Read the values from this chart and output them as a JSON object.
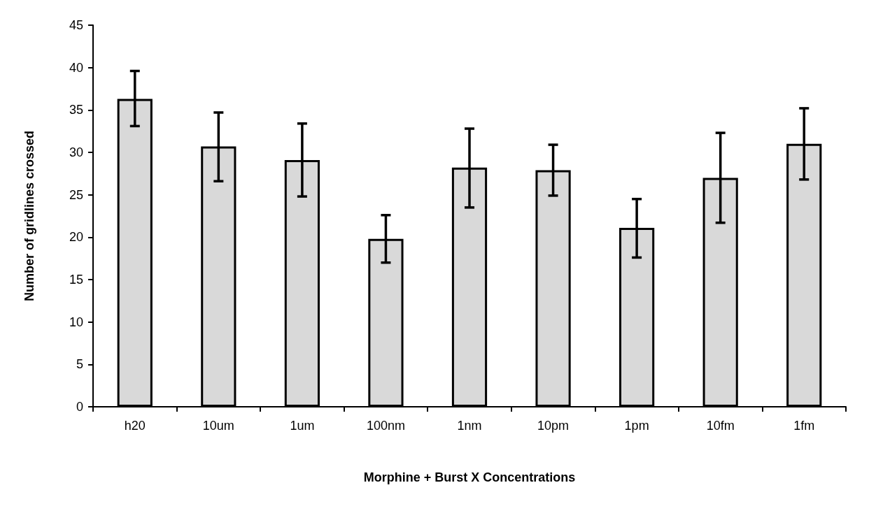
{
  "chart_data": {
    "type": "bar",
    "xlabel": "Morphine + Burst X Concentrations",
    "ylabel": "Number of gridlines crossed",
    "categories": [
      "h20",
      "10um",
      "1um",
      "100nm",
      "1nm",
      "10pm",
      "1pm",
      "10fm",
      "1fm"
    ],
    "values": [
      36.3,
      30.7,
      29.1,
      19.8,
      28.2,
      27.9,
      21.1,
      27.0,
      31.0
    ],
    "errors": [
      [
        33.1,
        39.6
      ],
      [
        26.6,
        34.7
      ],
      [
        24.8,
        33.4
      ],
      [
        17.0,
        22.6
      ],
      [
        23.5,
        32.8
      ],
      [
        24.9,
        30.9
      ],
      [
        17.6,
        24.5
      ],
      [
        21.7,
        32.3
      ],
      [
        26.8,
        35.2
      ]
    ],
    "color": "#d9d9d9",
    "ylim": [
      0,
      45
    ],
    "yticks": [
      0,
      5,
      10,
      15,
      20,
      25,
      30,
      35,
      40,
      45
    ],
    "grid": false
  }
}
